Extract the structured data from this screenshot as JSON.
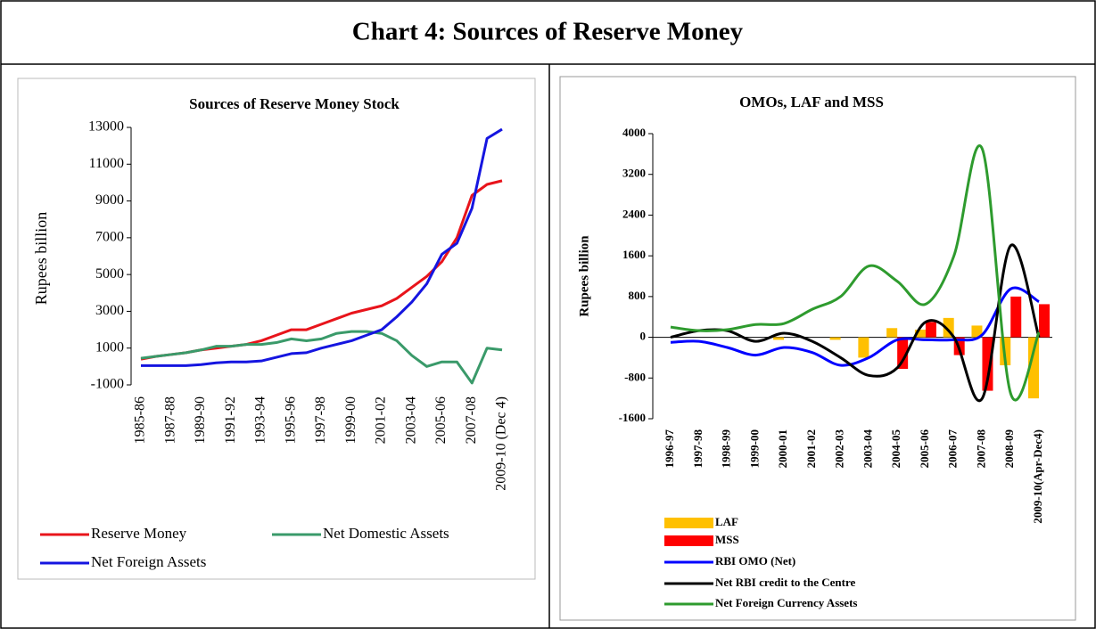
{
  "title": "Chart 4: Sources of Reserve Money",
  "chart_data": [
    {
      "type": "line",
      "title": "Sources of Reserve Money Stock",
      "y_label": "Rupees billion",
      "categories": [
        "1985-86",
        null,
        "1987-88",
        null,
        "1989-90",
        null,
        "1991-92",
        null,
        "1993-94",
        null,
        "1995-96",
        null,
        "1997-98",
        null,
        "1999-00",
        null,
        "2001-02",
        null,
        "2003-04",
        null,
        "2005-06",
        null,
        "2007-08",
        null,
        "2009-10 (Dec 4)"
      ],
      "ylim": [
        -1000,
        13000
      ],
      "yticks": [
        -1000,
        1000,
        3000,
        5000,
        7000,
        9000,
        11000,
        13000
      ],
      "series": [
        {
          "name": "Reserve Money",
          "color": "#e8141b",
          "values": [
            400,
            550,
            650,
            750,
            900,
            1000,
            1100,
            1200,
            1400,
            1700,
            2000,
            2000,
            2300,
            2600,
            2900,
            3100,
            3300,
            3700,
            4300,
            4900,
            5700,
            7000,
            9300,
            9900,
            10100
          ]
        },
        {
          "name": "Net Domestic Assets",
          "color": "#3a9a6a",
          "values": [
            450,
            550,
            650,
            750,
            900,
            1100,
            1100,
            1200,
            1200,
            1300,
            1500,
            1400,
            1500,
            1800,
            1900,
            1900,
            1800,
            1400,
            600,
            0,
            250,
            250,
            -900,
            1000,
            900
          ]
        },
        {
          "name": "Net Foreign Assets",
          "color": "#1515e0",
          "values": [
            50,
            50,
            50,
            50,
            100,
            200,
            250,
            250,
            300,
            500,
            700,
            750,
            1000,
            1200,
            1400,
            1700,
            2000,
            2700,
            3500,
            4500,
            6100,
            6700,
            8600,
            12400,
            12900
          ]
        }
      ]
    },
    {
      "type": "combo",
      "smooth": true,
      "title": "OMOs, LAF and MSS",
      "y_label": "Rupees billion",
      "categories": [
        "1996-97",
        "1997-98",
        "1998-99",
        "1999-00",
        "2000-01",
        "2001-02",
        "2002-03",
        "2003-04",
        "2004-05",
        "2005-06",
        "2006-07",
        "2007-08",
        "2008-09",
        "2009-10(Apr-Dec4)"
      ],
      "ylim": [
        -1600,
        4000
      ],
      "yticks": [
        -1600,
        -800,
        0,
        800,
        1600,
        2400,
        3200,
        4000
      ],
      "series": [
        {
          "name": "LAF",
          "kind": "bar",
          "color": "#ffc000",
          "values": [
            0,
            0,
            0,
            0,
            -50,
            0,
            -50,
            -400,
            180,
            150,
            380,
            230,
            -550,
            -1200
          ]
        },
        {
          "name": "MSS",
          "kind": "bar",
          "color": "#ff0000",
          "values": [
            0,
            0,
            0,
            0,
            0,
            0,
            0,
            0,
            -620,
            300,
            -350,
            -1050,
            800,
            650
          ]
        },
        {
          "name": "RBI OMO (Net)",
          "kind": "line",
          "color": "#0000ff",
          "values": [
            -100,
            -80,
            -200,
            -350,
            -200,
            -300,
            -550,
            -400,
            -50,
            -50,
            -50,
            50,
            950,
            700
          ]
        },
        {
          "name": "Net RBI credit to the Centre",
          "kind": "line",
          "color": "#000000",
          "values": [
            0,
            130,
            130,
            -80,
            80,
            -80,
            -400,
            -750,
            -600,
            300,
            0,
            -1200,
            1800,
            0
          ]
        },
        {
          "name": "Net Foreign Currency Assets",
          "kind": "line",
          "color": "#2e9b2e",
          "values": [
            200,
            130,
            150,
            250,
            270,
            550,
            800,
            1400,
            1100,
            650,
            1600,
            3700,
            -1100,
            100
          ]
        }
      ]
    }
  ]
}
